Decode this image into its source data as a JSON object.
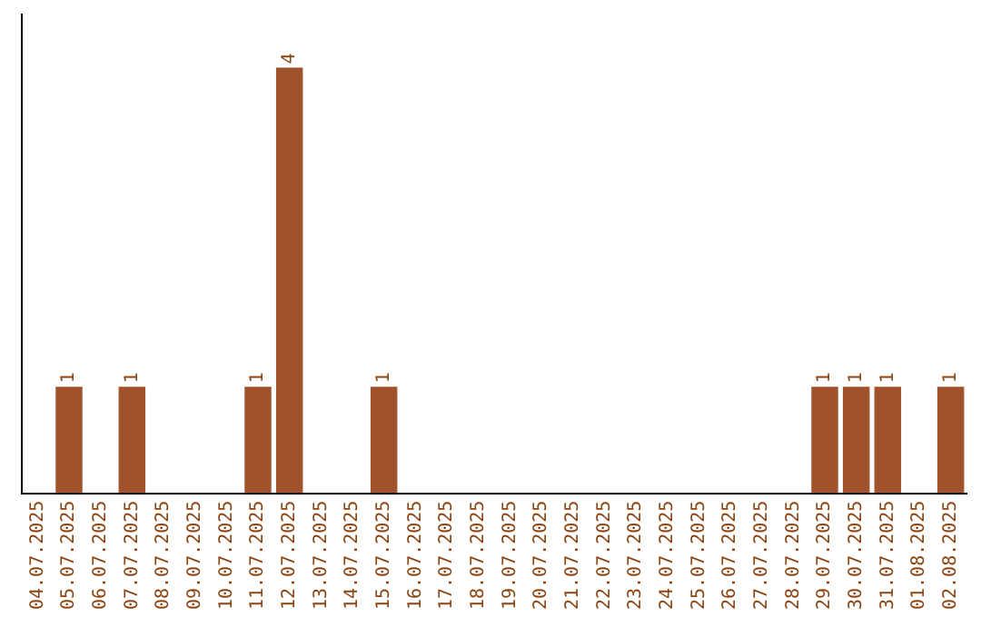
{
  "chart_data": {
    "type": "bar",
    "categories": [
      "04.07.2025",
      "05.07.2025",
      "06.07.2025",
      "07.07.2025",
      "08.07.2025",
      "09.07.2025",
      "10.07.2025",
      "11.07.2025",
      "12.07.2025",
      "13.07.2025",
      "14.07.2025",
      "15.07.2025",
      "16.07.2025",
      "17.07.2025",
      "18.07.2025",
      "19.07.2025",
      "20.07.2025",
      "21.07.2025",
      "22.07.2025",
      "23.07.2025",
      "24.07.2025",
      "25.07.2025",
      "26.07.2025",
      "27.07.2025",
      "28.07.2025",
      "29.07.2025",
      "30.07.2025",
      "31.07.2025",
      "01.08.2025",
      "02.08.2025"
    ],
    "values": [
      0,
      1,
      0,
      1,
      0,
      0,
      0,
      1,
      4,
      0,
      0,
      1,
      0,
      0,
      0,
      0,
      0,
      0,
      0,
      0,
      0,
      0,
      0,
      0,
      0,
      1,
      1,
      1,
      0,
      1
    ],
    "value_labels": [
      null,
      "1",
      null,
      "1",
      null,
      null,
      null,
      "1",
      "4",
      null,
      null,
      "1",
      null,
      null,
      null,
      null,
      null,
      null,
      null,
      null,
      null,
      null,
      null,
      null,
      null,
      "1",
      "1",
      "1",
      null,
      "1"
    ],
    "color": "#a0522d",
    "grid": false,
    "legend": false,
    "tick_labels": "x"
  }
}
